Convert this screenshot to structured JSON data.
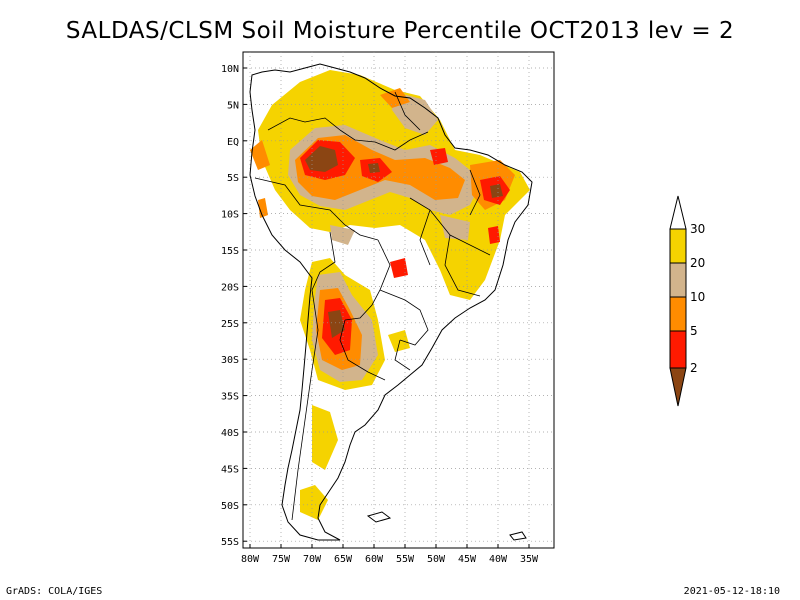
{
  "title": "SALDAS/CLSM Soil Moisture Percentile OCT2013 lev = 2",
  "footer": {
    "left": "GrADS: COLA/IGES",
    "right": "2021-05-12-18:10"
  },
  "map": {
    "region": "South America",
    "lat_labels": [
      "10N",
      "5N",
      "EQ",
      "5S",
      "10S",
      "15S",
      "20S",
      "25S",
      "30S",
      "35S",
      "40S",
      "45S",
      "50S",
      "55S"
    ],
    "lon_labels": [
      "80W",
      "75W",
      "70W",
      "65W",
      "60W",
      "55W",
      "50W",
      "45W",
      "40W",
      "35W"
    ],
    "gridlines": "dotted"
  },
  "legend": {
    "levels": [
      "30",
      "20",
      "10",
      "5",
      "2"
    ],
    "colors": {
      "above_30": "#ffffff",
      "20_30": "#f5d300",
      "10_20": "#d2b48c",
      "5_10": "#ff8c00",
      "2_5": "#ff1a00",
      "below_2": "#8b4513"
    }
  }
}
